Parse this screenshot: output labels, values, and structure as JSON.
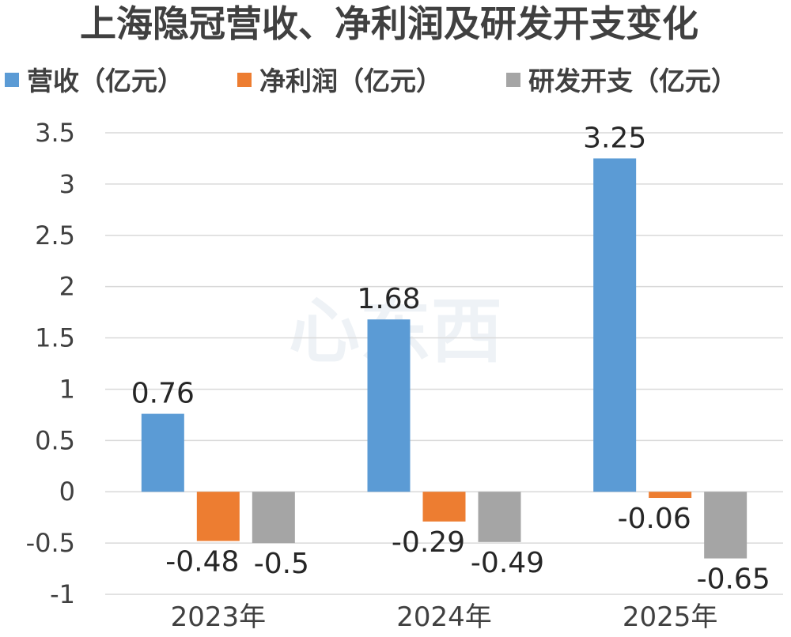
{
  "chart_data": {
    "type": "bar",
    "title": "上海隐冠营收、净利润及研发开支变化",
    "categories": [
      "2023年",
      "2024年",
      "2025年"
    ],
    "series": [
      {
        "name": "营收（亿元）",
        "color": "#5b9bd5",
        "values": [
          0.76,
          1.68,
          3.25
        ],
        "labels": [
          "0.76",
          "1.68",
          "3.25"
        ]
      },
      {
        "name": "净利润（亿元）",
        "color": "#ed7d31",
        "values": [
          -0.48,
          -0.29,
          -0.06
        ],
        "labels": [
          "-0.48",
          "-0.29",
          "-0.06"
        ]
      },
      {
        "name": "研发开支（亿元）",
        "color": "#a5a5a5",
        "values": [
          -0.5,
          -0.49,
          -0.65
        ],
        "labels": [
          "-0.5",
          "-0.49",
          "-0.65"
        ]
      }
    ],
    "ylim": [
      -1,
      3.5
    ],
    "yticks": [
      3.5,
      3,
      2.5,
      2,
      1.5,
      1,
      0.5,
      0,
      -0.5,
      -1
    ],
    "ytick_labels": [
      "3.5",
      "3",
      "2.5",
      "2",
      "1.5",
      "1",
      "0.5",
      "0",
      "-0.5",
      "-1"
    ],
    "grid": true,
    "legend_position": "top"
  }
}
